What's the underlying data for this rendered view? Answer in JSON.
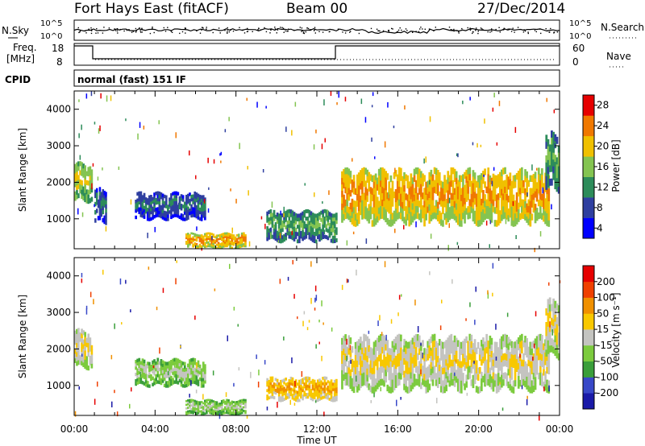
{
  "header": {
    "title": "Fort Hays East (fitACF)",
    "beam": "Beam 00",
    "date": "27/Dec/2014"
  },
  "top_panels": {
    "nsky_label": "N.Sky",
    "nsearch_label": "N.Search",
    "noise_ticks": [
      "10^5",
      "10^0"
    ],
    "freq_label_1": "Freq.",
    "freq_label_2": "[MHz]",
    "freq_ticks": [
      "18",
      "8"
    ],
    "nave_label": "Nave",
    "nave_ticks": [
      "60",
      "0"
    ],
    "cpid_label": "CPID",
    "cpid_text": "normal (fast) 151 IF"
  },
  "axes": {
    "ylabel": "Slant Range [km]",
    "xlabel": "Time UT",
    "yticks": [
      "1000",
      "2000",
      "3000",
      "4000"
    ],
    "xticks": [
      "00:00",
      "04:00",
      "08:00",
      "12:00",
      "16:00",
      "20:00",
      "00:00"
    ]
  },
  "chart_data": [
    {
      "type": "heatmap",
      "panel": "power",
      "x_range_hours": [
        0,
        24
      ],
      "y_range_km": [
        180,
        4500
      ],
      "colorbar_label": "Power [dB]",
      "colorbar_ticks": [
        "28",
        "24",
        "20",
        "16",
        "12",
        "8",
        "4"
      ],
      "colors": [
        "#0000ff",
        "#2f3fa0",
        "#2d8c5a",
        "#84c451",
        "#f0c000",
        "#f07800",
        "#e60000"
      ],
      "regions": [
        {
          "t0": 0.0,
          "t1": 0.9,
          "r0": 1500,
          "r1": 2500,
          "level": 3
        },
        {
          "t0": 1.0,
          "t1": 1.6,
          "r0": 900,
          "r1": 1800,
          "level": 1
        },
        {
          "t0": 3.0,
          "t1": 6.5,
          "r0": 1000,
          "r1": 1700,
          "level": 1
        },
        {
          "t0": 5.5,
          "t1": 8.5,
          "r0": 200,
          "r1": 600,
          "level": 4
        },
        {
          "t0": 9.5,
          "t1": 13.0,
          "r0": 400,
          "r1": 1200,
          "level": 2
        },
        {
          "t0": 13.2,
          "t1": 23.5,
          "r0": 900,
          "r1": 2300,
          "level": 4
        },
        {
          "t0": 23.3,
          "t1": 24.0,
          "r0": 1800,
          "r1": 3300,
          "level": 2
        }
      ]
    },
    {
      "type": "heatmap",
      "panel": "velocity",
      "x_range_hours": [
        0,
        24
      ],
      "y_range_km": [
        180,
        4500
      ],
      "colorbar_label": "Velocity [m s⁻¹]",
      "colorbar_ticks": [
        "200",
        "100",
        "50",
        "15",
        "-15",
        "-50",
        "-100",
        "-200"
      ],
      "colors": [
        "#1a1aa8",
        "#3848c8",
        "#3a9e3a",
        "#7ccb3e",
        "#c4c4c0",
        "#f8c800",
        "#f09000",
        "#f04000",
        "#e60000"
      ],
      "regions": [
        {
          "t0": 0.0,
          "t1": 0.9,
          "r0": 1500,
          "r1": 2500,
          "level": 4
        },
        {
          "t0": 3.0,
          "t1": 6.5,
          "r0": 1000,
          "r1": 1700,
          "level": 3
        },
        {
          "t0": 5.5,
          "t1": 8.5,
          "r0": 200,
          "r1": 600,
          "level": 3
        },
        {
          "t0": 9.5,
          "t1": 13.0,
          "r0": 600,
          "r1": 1200,
          "level": 5
        },
        {
          "t0": 13.2,
          "t1": 23.5,
          "r0": 900,
          "r1": 2300,
          "level": 4
        },
        {
          "t0": 23.3,
          "t1": 24.0,
          "r0": 1800,
          "r1": 3300,
          "level": 4
        }
      ]
    }
  ]
}
